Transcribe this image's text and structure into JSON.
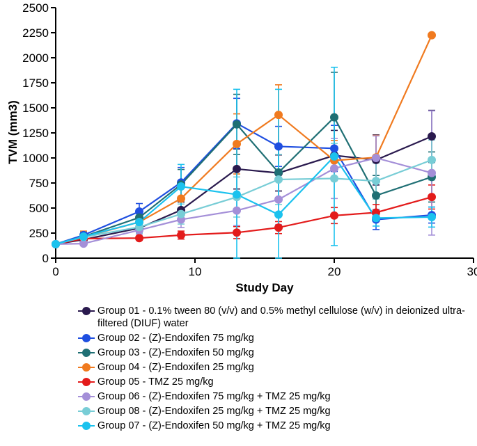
{
  "chart_data": {
    "type": "line",
    "xlabel": "Study  Day",
    "ylabel": "TVM (mm3)",
    "xlim": [
      0,
      30
    ],
    "ylim": [
      0,
      2500
    ],
    "xticks": [
      0,
      10,
      20,
      30
    ],
    "yticks": [
      0,
      250,
      500,
      750,
      1000,
      1250,
      1500,
      1750,
      2000,
      2250,
      2500
    ],
    "grid": false,
    "legend_position": "bottom",
    "series": [
      {
        "name": "Group 01 - 0.1% tween 80 (v/v) and 0.5% methyl cellulose (w/v) in deionized ultra-filtered (DIUF) water",
        "color": "#2a1a4e",
        "x": [
          0,
          2,
          6,
          9,
          13,
          16,
          20,
          23,
          27
        ],
        "y": [
          140,
          185,
          300,
          480,
          890,
          850,
          1025,
          980,
          1215
        ],
        "err": [
          0,
          20,
          40,
          80,
          200,
          180,
          250,
          250,
          260
        ]
      },
      {
        "name": "Group 02 - (Z)-Endoxifen 75 mg/kg",
        "color": "#1f4fe0",
        "x": [
          0,
          2,
          6,
          9,
          13,
          16,
          20,
          23,
          27
        ],
        "y": [
          140,
          230,
          465,
          755,
          1345,
          1115,
          1095,
          385,
          430
        ],
        "err": [
          0,
          30,
          80,
          150,
          250,
          200,
          230,
          100,
          80
        ]
      },
      {
        "name": "Group 03 - (Z)-Endoxifen 50 mg/kg",
        "color": "#1f6f74",
        "x": [
          0,
          2,
          6,
          9,
          13,
          16,
          20,
          23,
          27
        ],
        "y": [
          140,
          215,
          405,
          735,
          1335,
          855,
          1405,
          625,
          810
        ],
        "err": [
          0,
          30,
          70,
          150,
          300,
          250,
          450,
          200,
          250
        ]
      },
      {
        "name": "Group 04 - (Z)-Endoxifen 25 mg/kg",
        "color": "#f07a1f",
        "x": [
          0,
          2,
          6,
          9,
          13,
          16,
          20,
          23,
          27
        ],
        "y": [
          140,
          210,
          360,
          595,
          1140,
          1430,
          975,
          1005,
          2225
        ],
        "err": [
          0,
          60,
          60,
          100,
          300,
          300,
          200,
          220,
          0
        ]
      },
      {
        "name": "Group 05 - TMZ 25 mg/kg",
        "color": "#e31b1b",
        "x": [
          0,
          2,
          6,
          9,
          13,
          16,
          20,
          23,
          27
        ],
        "y": [
          140,
          195,
          200,
          230,
          255,
          305,
          425,
          455,
          610
        ],
        "err": [
          0,
          20,
          20,
          40,
          60,
          60,
          80,
          80,
          120
        ]
      },
      {
        "name": "Group 06 - (Z)-Endoxifen 75 mg/kg + TMZ 25 mg/kg",
        "color": "#a48fd8",
        "x": [
          0,
          2,
          6,
          9,
          13,
          16,
          20,
          23,
          27
        ],
        "y": [
          140,
          145,
          280,
          385,
          475,
          585,
          895,
          1000,
          850
        ],
        "err": [
          0,
          20,
          40,
          80,
          150,
          250,
          300,
          220,
          620
        ]
      },
      {
        "name": "Group 08 - (Z)-Endoxifen 25 mg/kg + TMZ 25 mg/kg",
        "color": "#78cdd6",
        "x": [
          0,
          2,
          6,
          9,
          13,
          16,
          20,
          23,
          27
        ],
        "y": [
          140,
          210,
          310,
          440,
          610,
          785,
          795,
          770,
          980
        ],
        "err": [
          0,
          30,
          60,
          100,
          200,
          250,
          350,
          180,
          200
        ]
      },
      {
        "name": "Group 07 - (Z)-Endoxifen 50 mg/kg + TMZ 25 mg/kg",
        "color": "#1bc2ee",
        "x": [
          0,
          2,
          6,
          9,
          13,
          16,
          20,
          23,
          27
        ],
        "y": [
          140,
          215,
          360,
          715,
          635,
          435,
          1015,
          400,
          410
        ],
        "err": [
          0,
          40,
          100,
          220,
          1050,
          1250,
          890,
          80,
          100
        ]
      }
    ]
  }
}
